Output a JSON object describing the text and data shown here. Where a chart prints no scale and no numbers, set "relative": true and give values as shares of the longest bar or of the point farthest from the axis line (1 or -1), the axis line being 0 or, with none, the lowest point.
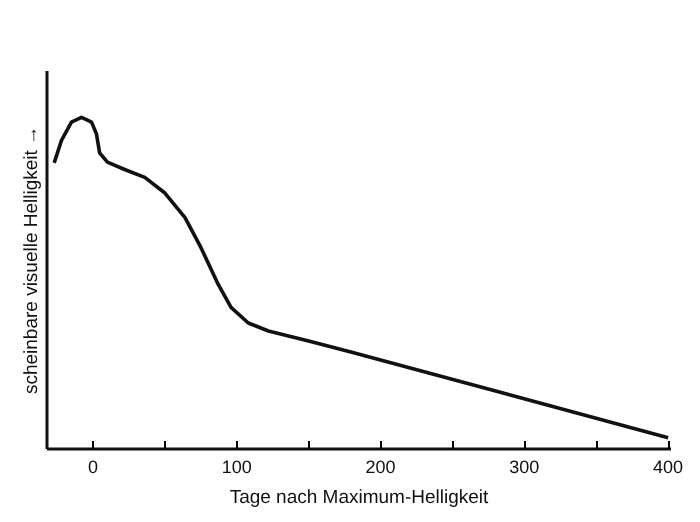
{
  "chart_data": {
    "type": "line",
    "relative": true,
    "xlabel": "Tage nach Maximum-Helligkeit",
    "ylabel": "scheinbare visuelle Helligkeit →",
    "x": [
      -27,
      -22,
      -15,
      -8,
      -1,
      2.4,
      4.6,
      10,
      22,
      36,
      50,
      64,
      75,
      87,
      96,
      108,
      122,
      150,
      180,
      400
    ],
    "series": [
      {
        "color": "#111111",
        "values": [
          0.863,
          0.93,
          0.986,
          1.0,
          0.986,
          0.95,
          0.893,
          0.865,
          0.843,
          0.819,
          0.772,
          0.698,
          0.608,
          0.497,
          0.427,
          0.38,
          0.356,
          0.326,
          0.292,
          0.034
        ]
      }
    ],
    "xlim": [
      -32,
      402
    ],
    "xticks": [
      0,
      {
        "value": 50,
        "label": null
      },
      100,
      {
        "value": 150,
        "label": null
      },
      200,
      {
        "value": 250,
        "label": null
      },
      300,
      {
        "value": 350,
        "label": null
      },
      400
    ],
    "grid": false,
    "marker": "none",
    "line_style": "solid"
  }
}
